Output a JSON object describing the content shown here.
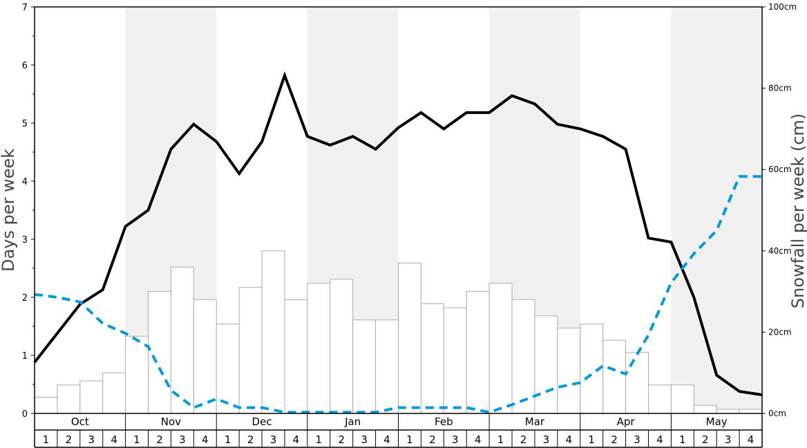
{
  "chart_data": {
    "type": "bar+line",
    "months": [
      "Oct",
      "Nov",
      "Dec",
      "Jan",
      "Feb",
      "Mar",
      "Apr",
      "May"
    ],
    "weeks": [
      "1",
      "2",
      "3",
      "4"
    ],
    "ylabel_left": "Days per week",
    "ylabel_right": "Snowfall per week (cm)",
    "ylim_left": [
      0,
      7
    ],
    "ylim_right": [
      0,
      100
    ],
    "left_ticks": [
      0,
      1,
      2,
      3,
      4,
      5,
      6,
      7
    ],
    "right_ticks": [
      {
        "value": 0,
        "label": "0cm"
      },
      {
        "value": 20,
        "label": "20cm"
      },
      {
        "value": 40,
        "label": "40cm"
      },
      {
        "value": 60,
        "label": "60cm"
      },
      {
        "value": 80,
        "label": "80cm"
      },
      {
        "value": 100,
        "label": "100cm"
      }
    ],
    "shaded_months": [
      "Nov",
      "Jan",
      "Mar",
      "May"
    ],
    "series": [
      {
        "kind": "bar",
        "axis": "right",
        "values": [
          4,
          7,
          8,
          10,
          19,
          30,
          36,
          28,
          22,
          31,
          40,
          28,
          32,
          33,
          23,
          23,
          37,
          27,
          26,
          30,
          32,
          28,
          24,
          21,
          22,
          18,
          15,
          7,
          7,
          2,
          1,
          1
        ],
        "color": "#ffffff",
        "stroke": "#aaaaaa"
      },
      {
        "kind": "line",
        "axis": "left",
        "style": "solid",
        "color": "#000000",
        "values": [
          0.88,
          1.38,
          1.88,
          2.13,
          3.22,
          3.5,
          4.55,
          4.98,
          4.68,
          4.13,
          4.68,
          5.82,
          4.77,
          4.62,
          4.77,
          4.55,
          4.92,
          5.18,
          4.9,
          5.18,
          5.18,
          5.47,
          5.33,
          4.98,
          4.9,
          4.77,
          4.55,
          3.02,
          2.95,
          2.0,
          0.66,
          0.38,
          0.32
        ]
      },
      {
        "kind": "line",
        "axis": "left",
        "style": "dashed",
        "color": "#0099dd",
        "values": [
          2.05,
          2.0,
          1.92,
          1.55,
          1.38,
          1.15,
          0.4,
          0.1,
          0.25,
          0.1,
          0.1,
          0.02,
          0.02,
          0.02,
          0.02,
          0.02,
          0.1,
          0.1,
          0.1,
          0.1,
          0.02,
          0.15,
          0.3,
          0.45,
          0.53,
          0.82,
          0.68,
          1.35,
          2.25,
          2.75,
          3.15,
          4.08,
          4.08
        ]
      }
    ]
  }
}
